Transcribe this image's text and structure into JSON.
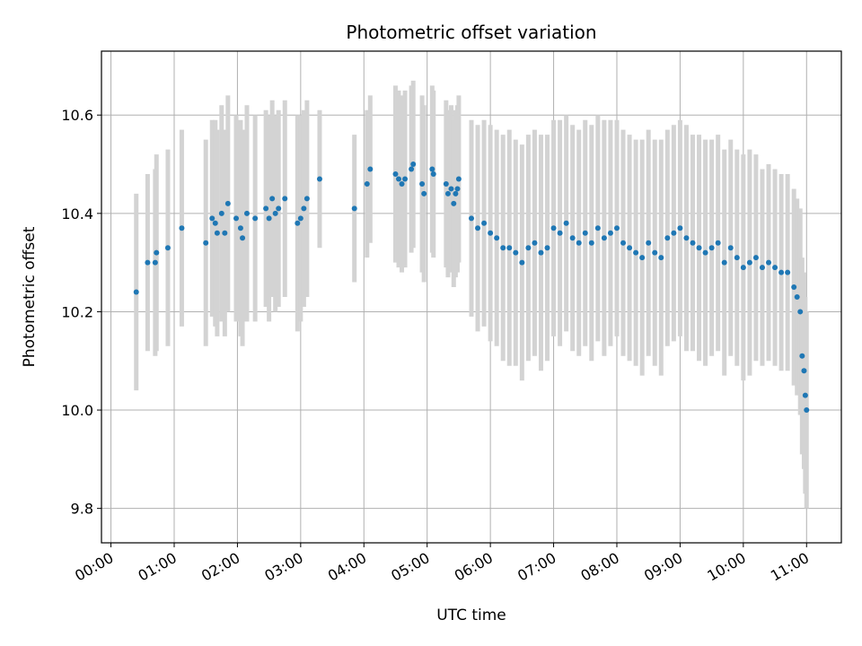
{
  "chart_data": {
    "type": "scatter",
    "title": "Photometric offset variation",
    "xlabel": "UTC time",
    "ylabel": "Photometric offset",
    "x_unit": "hours",
    "xlim": [
      -0.15,
      11.55
    ],
    "ylim": [
      9.73,
      10.73
    ],
    "x_ticks": [
      0,
      1,
      2,
      3,
      4,
      5,
      6,
      7,
      8,
      9,
      10,
      11
    ],
    "x_tick_labels": [
      "00:00",
      "01:00",
      "02:00",
      "03:00",
      "04:00",
      "05:00",
      "06:00",
      "07:00",
      "08:00",
      "09:00",
      "10:00",
      "11:00"
    ],
    "y_ticks": [
      9.8,
      10.0,
      10.2,
      10.4,
      10.6
    ],
    "y_tick_labels": [
      "9.8",
      "10.0",
      "10.2",
      "10.4",
      "10.6"
    ],
    "grid": true,
    "colors": {
      "point": "#1f77b4",
      "errorbar": "#d3d3d3",
      "grid": "#b0b0b0",
      "axis": "#000000"
    },
    "series": [
      {
        "name": "offset",
        "x": [
          0.4,
          0.58,
          0.7,
          0.72,
          0.9,
          1.12,
          1.5,
          1.6,
          1.65,
          1.68,
          1.75,
          1.8,
          1.85,
          1.98,
          2.05,
          2.08,
          2.15,
          2.28,
          2.45,
          2.5,
          2.55,
          2.6,
          2.65,
          2.75,
          2.95,
          3.0,
          3.05,
          3.1,
          3.3,
          3.85,
          4.05,
          4.1,
          4.5,
          4.55,
          4.6,
          4.65,
          4.75,
          4.78,
          4.92,
          4.95,
          5.08,
          5.1,
          5.3,
          5.33,
          5.38,
          5.42,
          5.45,
          5.48,
          5.5,
          5.7,
          5.8,
          5.9,
          6.0,
          6.1,
          6.2,
          6.3,
          6.4,
          6.5,
          6.6,
          6.7,
          6.8,
          6.9,
          7.0,
          7.1,
          7.2,
          7.3,
          7.4,
          7.5,
          7.6,
          7.7,
          7.8,
          7.9,
          8.0,
          8.1,
          8.2,
          8.3,
          8.4,
          8.5,
          8.6,
          8.7,
          8.8,
          8.9,
          9.0,
          9.1,
          9.2,
          9.3,
          9.4,
          9.5,
          9.6,
          9.7,
          9.8,
          9.9,
          10.0,
          10.1,
          10.2,
          10.3,
          10.4,
          10.5,
          10.6,
          10.7,
          10.8,
          10.85,
          10.9,
          10.93,
          10.96,
          10.98,
          11.0
        ],
        "y": [
          10.24,
          10.3,
          10.3,
          10.32,
          10.33,
          10.37,
          10.34,
          10.39,
          10.38,
          10.36,
          10.4,
          10.36,
          10.42,
          10.39,
          10.37,
          10.35,
          10.4,
          10.39,
          10.41,
          10.39,
          10.43,
          10.4,
          10.41,
          10.43,
          10.38,
          10.39,
          10.41,
          10.43,
          10.47,
          10.41,
          10.46,
          10.49,
          10.48,
          10.47,
          10.46,
          10.47,
          10.49,
          10.5,
          10.46,
          10.44,
          10.49,
          10.48,
          10.46,
          10.44,
          10.45,
          10.42,
          10.44,
          10.45,
          10.47,
          10.39,
          10.37,
          10.38,
          10.36,
          10.35,
          10.33,
          10.33,
          10.32,
          10.3,
          10.33,
          10.34,
          10.32,
          10.33,
          10.37,
          10.36,
          10.38,
          10.35,
          10.34,
          10.36,
          10.34,
          10.37,
          10.35,
          10.36,
          10.37,
          10.34,
          10.33,
          10.32,
          10.31,
          10.34,
          10.32,
          10.31,
          10.35,
          10.36,
          10.37,
          10.35,
          10.34,
          10.33,
          10.32,
          10.33,
          10.34,
          10.3,
          10.33,
          10.31,
          10.29,
          10.3,
          10.31,
          10.29,
          10.3,
          10.29,
          10.28,
          10.28,
          10.25,
          10.23,
          10.2,
          10.11,
          10.08,
          10.03,
          10.0
        ],
        "y_err": [
          0.2,
          0.18,
          0.19,
          0.2,
          0.2,
          0.2,
          0.21,
          0.2,
          0.21,
          0.21,
          0.22,
          0.21,
          0.22,
          0.21,
          0.22,
          0.22,
          0.22,
          0.21,
          0.2,
          0.21,
          0.2,
          0.2,
          0.2,
          0.2,
          0.22,
          0.21,
          0.2,
          0.2,
          0.14,
          0.15,
          0.15,
          0.15,
          0.18,
          0.18,
          0.18,
          0.18,
          0.17,
          0.17,
          0.18,
          0.18,
          0.17,
          0.17,
          0.17,
          0.17,
          0.17,
          0.17,
          0.17,
          0.17,
          0.17,
          0.2,
          0.21,
          0.21,
          0.22,
          0.22,
          0.23,
          0.24,
          0.23,
          0.24,
          0.23,
          0.23,
          0.24,
          0.23,
          0.22,
          0.23,
          0.22,
          0.23,
          0.23,
          0.23,
          0.24,
          0.23,
          0.24,
          0.23,
          0.22,
          0.23,
          0.23,
          0.23,
          0.24,
          0.23,
          0.23,
          0.24,
          0.22,
          0.22,
          0.22,
          0.23,
          0.22,
          0.23,
          0.23,
          0.22,
          0.22,
          0.23,
          0.22,
          0.22,
          0.23,
          0.23,
          0.21,
          0.2,
          0.2,
          0.2,
          0.2,
          0.2,
          0.2,
          0.2,
          0.21,
          0.2,
          0.2,
          0.2,
          0.2
        ]
      }
    ]
  }
}
